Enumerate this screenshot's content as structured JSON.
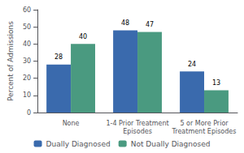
{
  "chart_data": {
    "type": "bar",
    "categories": [
      "None",
      "1-4 Prior Treatment\nEpisodes",
      "5 or More Prior\nTreatment Episodes"
    ],
    "series": [
      {
        "name": "Dually Diagnosed",
        "color": "#3a6aad",
        "values": [
          28,
          48,
          24
        ]
      },
      {
        "name": "Not Dually Diagnosed",
        "color": "#4a9a80",
        "values": [
          40,
          47,
          13
        ]
      }
    ],
    "ylabel": "Percent of Admissions",
    "ylim": [
      0,
      60
    ],
    "yticks": [
      0,
      10,
      20,
      30,
      40,
      50,
      60
    ],
    "grid": false,
    "legend": "bottom",
    "data_labels": true
  }
}
